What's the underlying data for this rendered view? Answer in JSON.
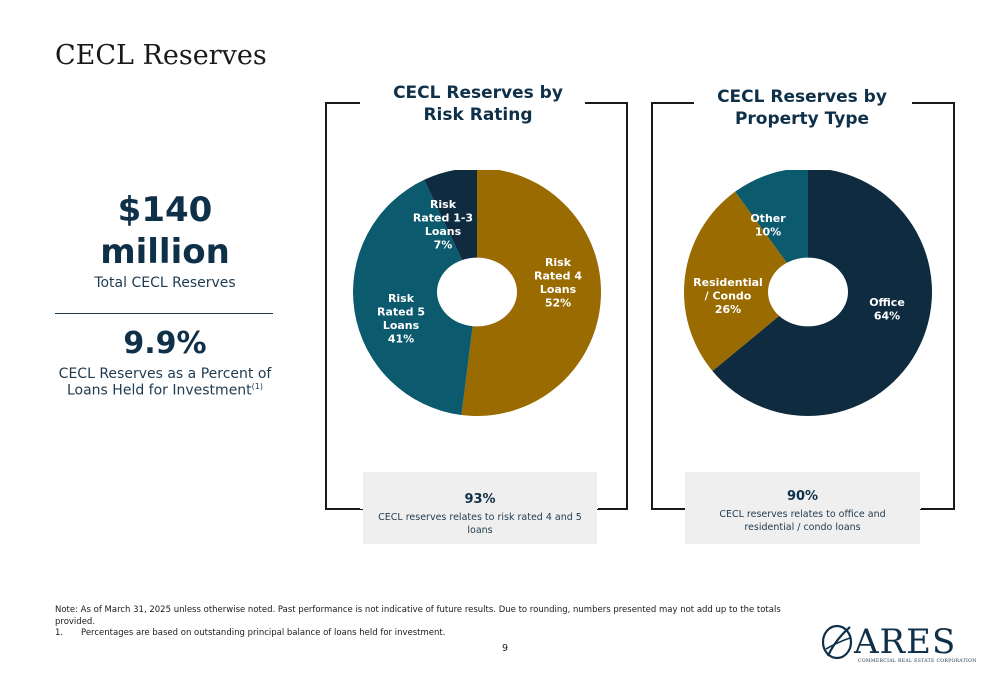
{
  "page": {
    "title": "CECL Reserves",
    "page_number": "9"
  },
  "left_stats": {
    "total_value": "$140",
    "total_unit": "million",
    "total_label": "Total CECL Reserves",
    "percent_value": "9.9%",
    "percent_label_line1": "CECL Reserves as a Percent of",
    "percent_label_line2": "Loans Held for Investment",
    "percent_footnote_ref": "(1)"
  },
  "panels": [
    {
      "title_line1": "CECL Reserves by",
      "title_line2": "Risk Rating",
      "callout_pct": "93%",
      "callout_desc": "CECL reserves relates to risk rated 4 and 5 loans"
    },
    {
      "title_line1": "CECL Reserves by",
      "title_line2": "Property Type",
      "callout_pct": "90%",
      "callout_desc": "CECL reserves relates to office and residential / condo loans"
    }
  ],
  "chart_data": [
    {
      "type": "pie",
      "title": "CECL Reserves by Risk Rating",
      "donut": true,
      "slices": [
        {
          "label_lines": [
            "Risk",
            "Rated 4",
            "Loans",
            "52%"
          ],
          "value": 52,
          "color": "#9a6b00"
        },
        {
          "label_lines": [
            "Risk",
            "Rated 5",
            "Loans",
            "41%"
          ],
          "value": 41,
          "color": "#0b5a6e"
        },
        {
          "label_lines": [
            "Risk",
            "Rated 1-3",
            "Loans",
            "7%"
          ],
          "value": 7,
          "color": "#0f2b40"
        }
      ]
    },
    {
      "type": "pie",
      "title": "CECL Reserves by Property Type",
      "donut": true,
      "slices": [
        {
          "label_lines": [
            "Office",
            "64%"
          ],
          "value": 64,
          "color": "#0f2b40"
        },
        {
          "label_lines": [
            "Residential",
            "/ Condo",
            "26%"
          ],
          "value": 26,
          "color": "#9a6b00"
        },
        {
          "label_lines": [
            "Other",
            "10%"
          ],
          "value": 10,
          "color": "#0b5a6e"
        }
      ]
    }
  ],
  "footer": {
    "note": "Note: As of March 31, 2025 unless otherwise noted. Past performance is not indicative of future results. Due to rounding, numbers presented may not add up to the totals provided.",
    "footnote_number": "1.",
    "footnote_text": "Percentages are based on outstanding principal balance of loans held for investment."
  },
  "logo": {
    "word": "ARES",
    "subtitle": "COMMERCIAL REAL ESTATE CORPORATION",
    "icon": "ares-logo-icon"
  }
}
